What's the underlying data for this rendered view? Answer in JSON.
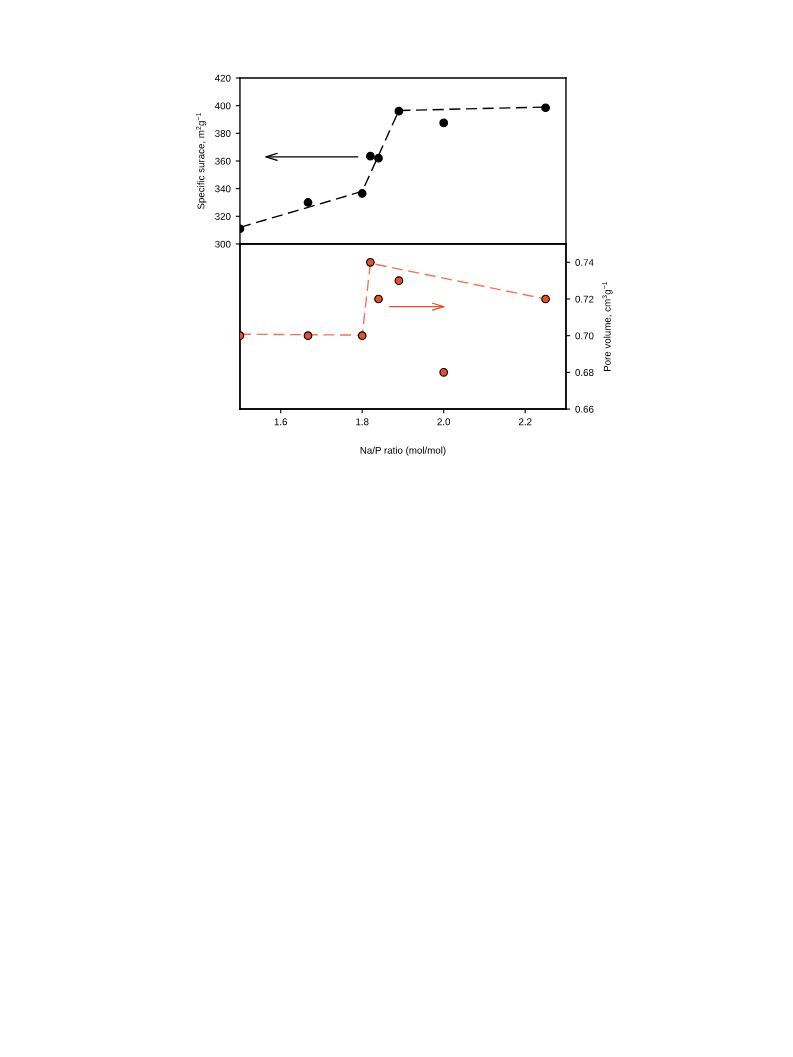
{
  "chart_data": [
    {
      "type": "scatter",
      "ylabel": "Specific surace, m$^{2}$g$^{−1}$",
      "xlim": [
        1.5,
        2.3
      ],
      "ylim": [
        300,
        420
      ],
      "yticks": [
        300,
        320,
        340,
        360,
        380,
        400,
        420
      ],
      "tick_labels": "y",
      "grid": false,
      "legend": false,
      "series": [
        {
          "color": "#000000",
          "marker": "circle",
          "x": [
            1.5,
            1.667,
            1.8,
            1.82,
            1.84,
            1.89,
            2.0,
            2.25
          ],
          "values": [
            311,
            330,
            336.5,
            363.5,
            362,
            396,
            387.5,
            398.5
          ]
        },
        {
          "type": "line",
          "color": "#000000",
          "line_style": "dashed",
          "x": [
            1.5,
            1.8,
            1.89,
            2.25
          ],
          "values": [
            312,
            338,
            396.5,
            399
          ]
        }
      ]
    },
    {
      "type": "scatter",
      "xlabel": "Na/P ratio (mol/mol)",
      "y2label": "Pore volume, cm$^{3}$g$^{−1}$",
      "xlim": [
        1.5,
        2.3
      ],
      "xticks": [
        1.6,
        1.8,
        {
          "value": 2,
          "label": "2.0"
        },
        2.2
      ],
      "y2lim": [
        0.66,
        0.75
      ],
      "y2ticks": [
        0.66,
        0.68,
        {
          "value": 0.7,
          "label": "0.70"
        },
        0.72,
        0.74
      ],
      "grid": false,
      "legend": false,
      "series": [
        {
          "axis": "y2",
          "color": "#e8502a",
          "marker": "circle",
          "x": [
            1.5,
            1.667,
            1.8,
            1.82,
            1.84,
            1.89,
            2.0,
            2.25
          ],
          "values": [
            0.7,
            0.7,
            0.7,
            0.74,
            0.72,
            0.73,
            0.68,
            0.72
          ]
        },
        {
          "type": "line",
          "axis": "y2",
          "color": "#f07858",
          "line_style": "dashed",
          "x": [
            1.5,
            1.8,
            1.82,
            2.25
          ],
          "values": [
            0.7008,
            0.7003,
            0.7395,
            0.72
          ]
        }
      ]
    }
  ]
}
